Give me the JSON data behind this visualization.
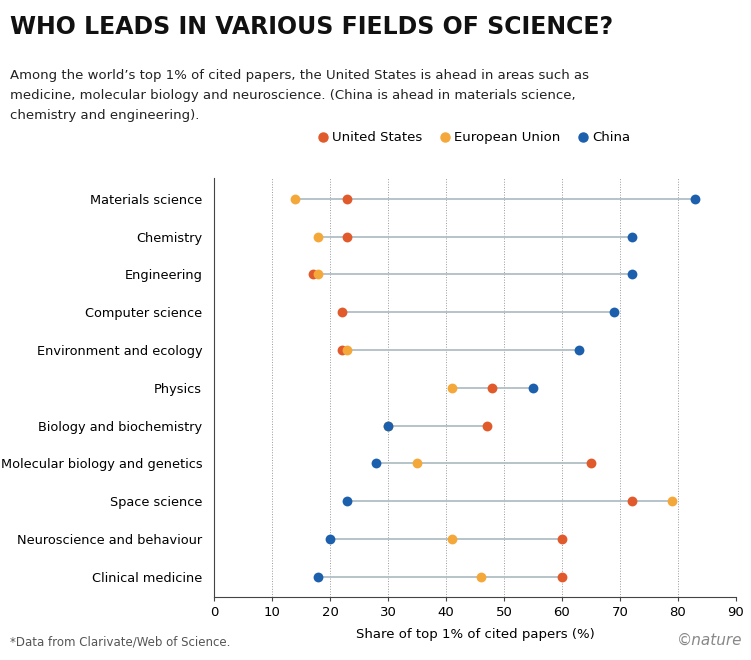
{
  "title": "WHO LEADS IN VARIOUS FIELDS OF SCIENCE?",
  "subtitle_line1": "Among the world’s top 1% of cited papers, the United States is ahead in areas such as",
  "subtitle_line2": "medicine, molecular biology and neuroscience. (China is ahead in materials science,",
  "subtitle_line3": "chemistry and engineering).",
  "footnote": "*Data from Clarivate/Web of Science.",
  "watermark": "©nature",
  "xlabel": "Share of top 1% of cited papers (%)",
  "xlim": [
    0,
    90
  ],
  "xticks": [
    0,
    10,
    20,
    30,
    40,
    50,
    60,
    70,
    80,
    90
  ],
  "categories": [
    "Materials science",
    "Chemistry",
    "Engineering",
    "Computer science",
    "Environment and ecology",
    "Physics",
    "Biology and biochemistry",
    "Molecular biology and genetics",
    "Space science",
    "Neuroscience and behaviour",
    "Clinical medicine"
  ],
  "united_states": [
    23,
    23,
    17,
    22,
    22,
    48,
    47,
    65,
    72,
    60,
    60
  ],
  "european_union": [
    14,
    18,
    18,
    null,
    23,
    41,
    30,
    35,
    79,
    41,
    46
  ],
  "china": [
    83,
    72,
    72,
    69,
    63,
    55,
    30,
    28,
    23,
    20,
    18
  ],
  "us_color": "#e05a2b",
  "eu_color": "#f5a83a",
  "cn_color": "#1b5fad",
  "line_color": "#b0bec5",
  "background_color": "#ffffff"
}
